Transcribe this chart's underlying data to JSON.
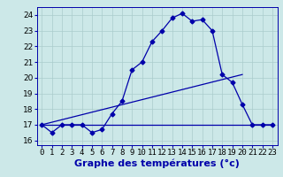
{
  "title": "Graphe des températures (°c)",
  "bg_color": "#cce8e8",
  "line_color": "#0000aa",
  "grid_color": "#aacccc",
  "xlim": [
    -0.5,
    23.5
  ],
  "ylim": [
    15.7,
    24.5
  ],
  "xticks": [
    0,
    1,
    2,
    3,
    4,
    5,
    6,
    7,
    8,
    9,
    10,
    11,
    12,
    13,
    14,
    15,
    16,
    17,
    18,
    19,
    20,
    21,
    22,
    23
  ],
  "yticks": [
    16,
    17,
    18,
    19,
    20,
    21,
    22,
    23,
    24
  ],
  "curve1_x": [
    0,
    1,
    2,
    3,
    4,
    5,
    6,
    7,
    8,
    9,
    10,
    11,
    12,
    13,
    14,
    15,
    16,
    17,
    18,
    19,
    20,
    21,
    22,
    23
  ],
  "curve1_y": [
    17.0,
    16.5,
    17.0,
    17.0,
    17.0,
    16.5,
    16.7,
    17.7,
    18.5,
    20.5,
    21.0,
    22.3,
    23.0,
    23.8,
    24.1,
    23.6,
    23.7,
    23.0,
    20.2,
    19.7,
    18.3,
    17.0,
    17.0,
    17.0
  ],
  "curve2_x": [
    0,
    23
  ],
  "curve2_y": [
    17.0,
    17.0
  ],
  "curve3_x": [
    0,
    20
  ],
  "curve3_y": [
    17.0,
    20.2
  ],
  "marker": "D",
  "marker_size": 2.5,
  "xlabel_fontsize": 8,
  "tick_fontsize": 6.5,
  "figsize": [
    3.2,
    2.0
  ],
  "dpi": 100
}
